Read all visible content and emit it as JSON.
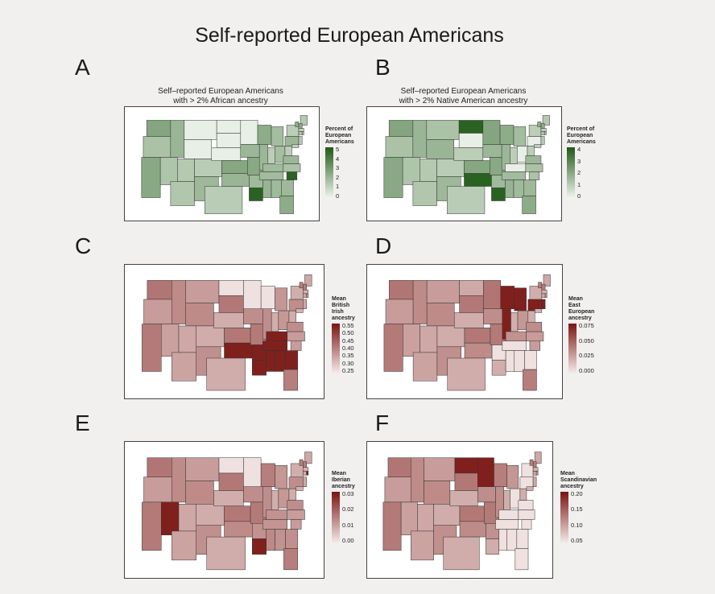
{
  "title": "Self-reported European Americans",
  "panels": [
    {
      "letter": "A",
      "subtitle": "Self–reported European Americans\nwith > 2% African ancestry",
      "legend_title": "Percent of\nEuropean\nAmericans",
      "ticks": [
        "5",
        "4",
        "3",
        "2",
        "1",
        "0"
      ],
      "scale": "green",
      "color_low": "#f3f7f1",
      "color_high": "#1e5a16",
      "highlight_states": [
        "Louisiana",
        "South Carolina"
      ],
      "light_states": [
        "Montana",
        "North Dakota",
        "South Dakota",
        "Minnesota",
        "Nebraska",
        "Wyoming"
      ]
    },
    {
      "letter": "B",
      "subtitle": "Self–reported European Americans\nwith > 2% Native American ancestry",
      "legend_title": "Percent of\nEuropean\nAmericans",
      "ticks": [
        "4",
        "3",
        "2",
        "1",
        "0"
      ],
      "scale": "green",
      "color_low": "#f3f7f1",
      "color_high": "#1e5a16",
      "highlight_states": [
        "North Dakota",
        "Oklahoma",
        "Louisiana"
      ],
      "light_states": [
        "South Dakota",
        "Kentucky",
        "Ohio",
        "Pennsylvania"
      ]
    },
    {
      "letter": "C",
      "subtitle": "",
      "legend_title": "Mean\nBritish\nIrish\nancestry",
      "ticks": [
        "0.55",
        "0.50",
        "0.45",
        "0.40",
        "0.35",
        "0.30",
        "0.25"
      ],
      "scale": "red",
      "color_low": "#f5eceb",
      "color_high": "#7a1512",
      "highlight_states": [
        "Tennessee",
        "Mississippi",
        "Alabama",
        "Arkansas",
        "Kentucky",
        "Georgia",
        "Louisiana",
        "Oklahoma"
      ],
      "light_states": [
        "Minnesota",
        "North Dakota",
        "Wisconsin"
      ]
    },
    {
      "letter": "D",
      "subtitle": "",
      "legend_title": "Mean\nEast\nEuropean\nancestry",
      "ticks": [
        "0.075",
        "0.050",
        "0.025",
        "0.000"
      ],
      "scale": "red",
      "color_low": "#f5eceb",
      "color_high": "#7a1512",
      "highlight_states": [
        "Wisconsin",
        "Illinois",
        "Michigan",
        "Pennsylvania",
        "New Jersey"
      ],
      "light_states": [
        "Tennessee",
        "Mississippi",
        "Alabama",
        "Georgia",
        "Arkansas"
      ]
    },
    {
      "letter": "E",
      "subtitle": "",
      "legend_title": "Mean\nIberian\nancestry",
      "ticks": [
        "0.03",
        "0.02",
        "0.01",
        "0.00"
      ],
      "scale": "red",
      "color_low": "#f5eceb",
      "color_high": "#7a1512",
      "highlight_states": [
        "Louisiana",
        "Nevada",
        "Rhode Island"
      ],
      "light_states": [
        "Minnesota",
        "North Dakota"
      ]
    },
    {
      "letter": "F",
      "subtitle": "",
      "legend_title": "Mean\nScandinavian\nancestry",
      "ticks": [
        "0.20",
        "0.15",
        "0.10",
        "0.05"
      ],
      "scale": "red",
      "color_low": "#f5eceb",
      "color_high": "#7a1512",
      "highlight_states": [
        "North Dakota",
        "Minnesota"
      ],
      "light_states": [
        "Ohio",
        "Pennsylvania",
        "New York",
        "Kentucky",
        "Tennessee",
        "Mississippi",
        "Alabama",
        "Georgia",
        "South Carolina",
        "North Carolina",
        "Virginia",
        "Florida"
      ]
    }
  ]
}
